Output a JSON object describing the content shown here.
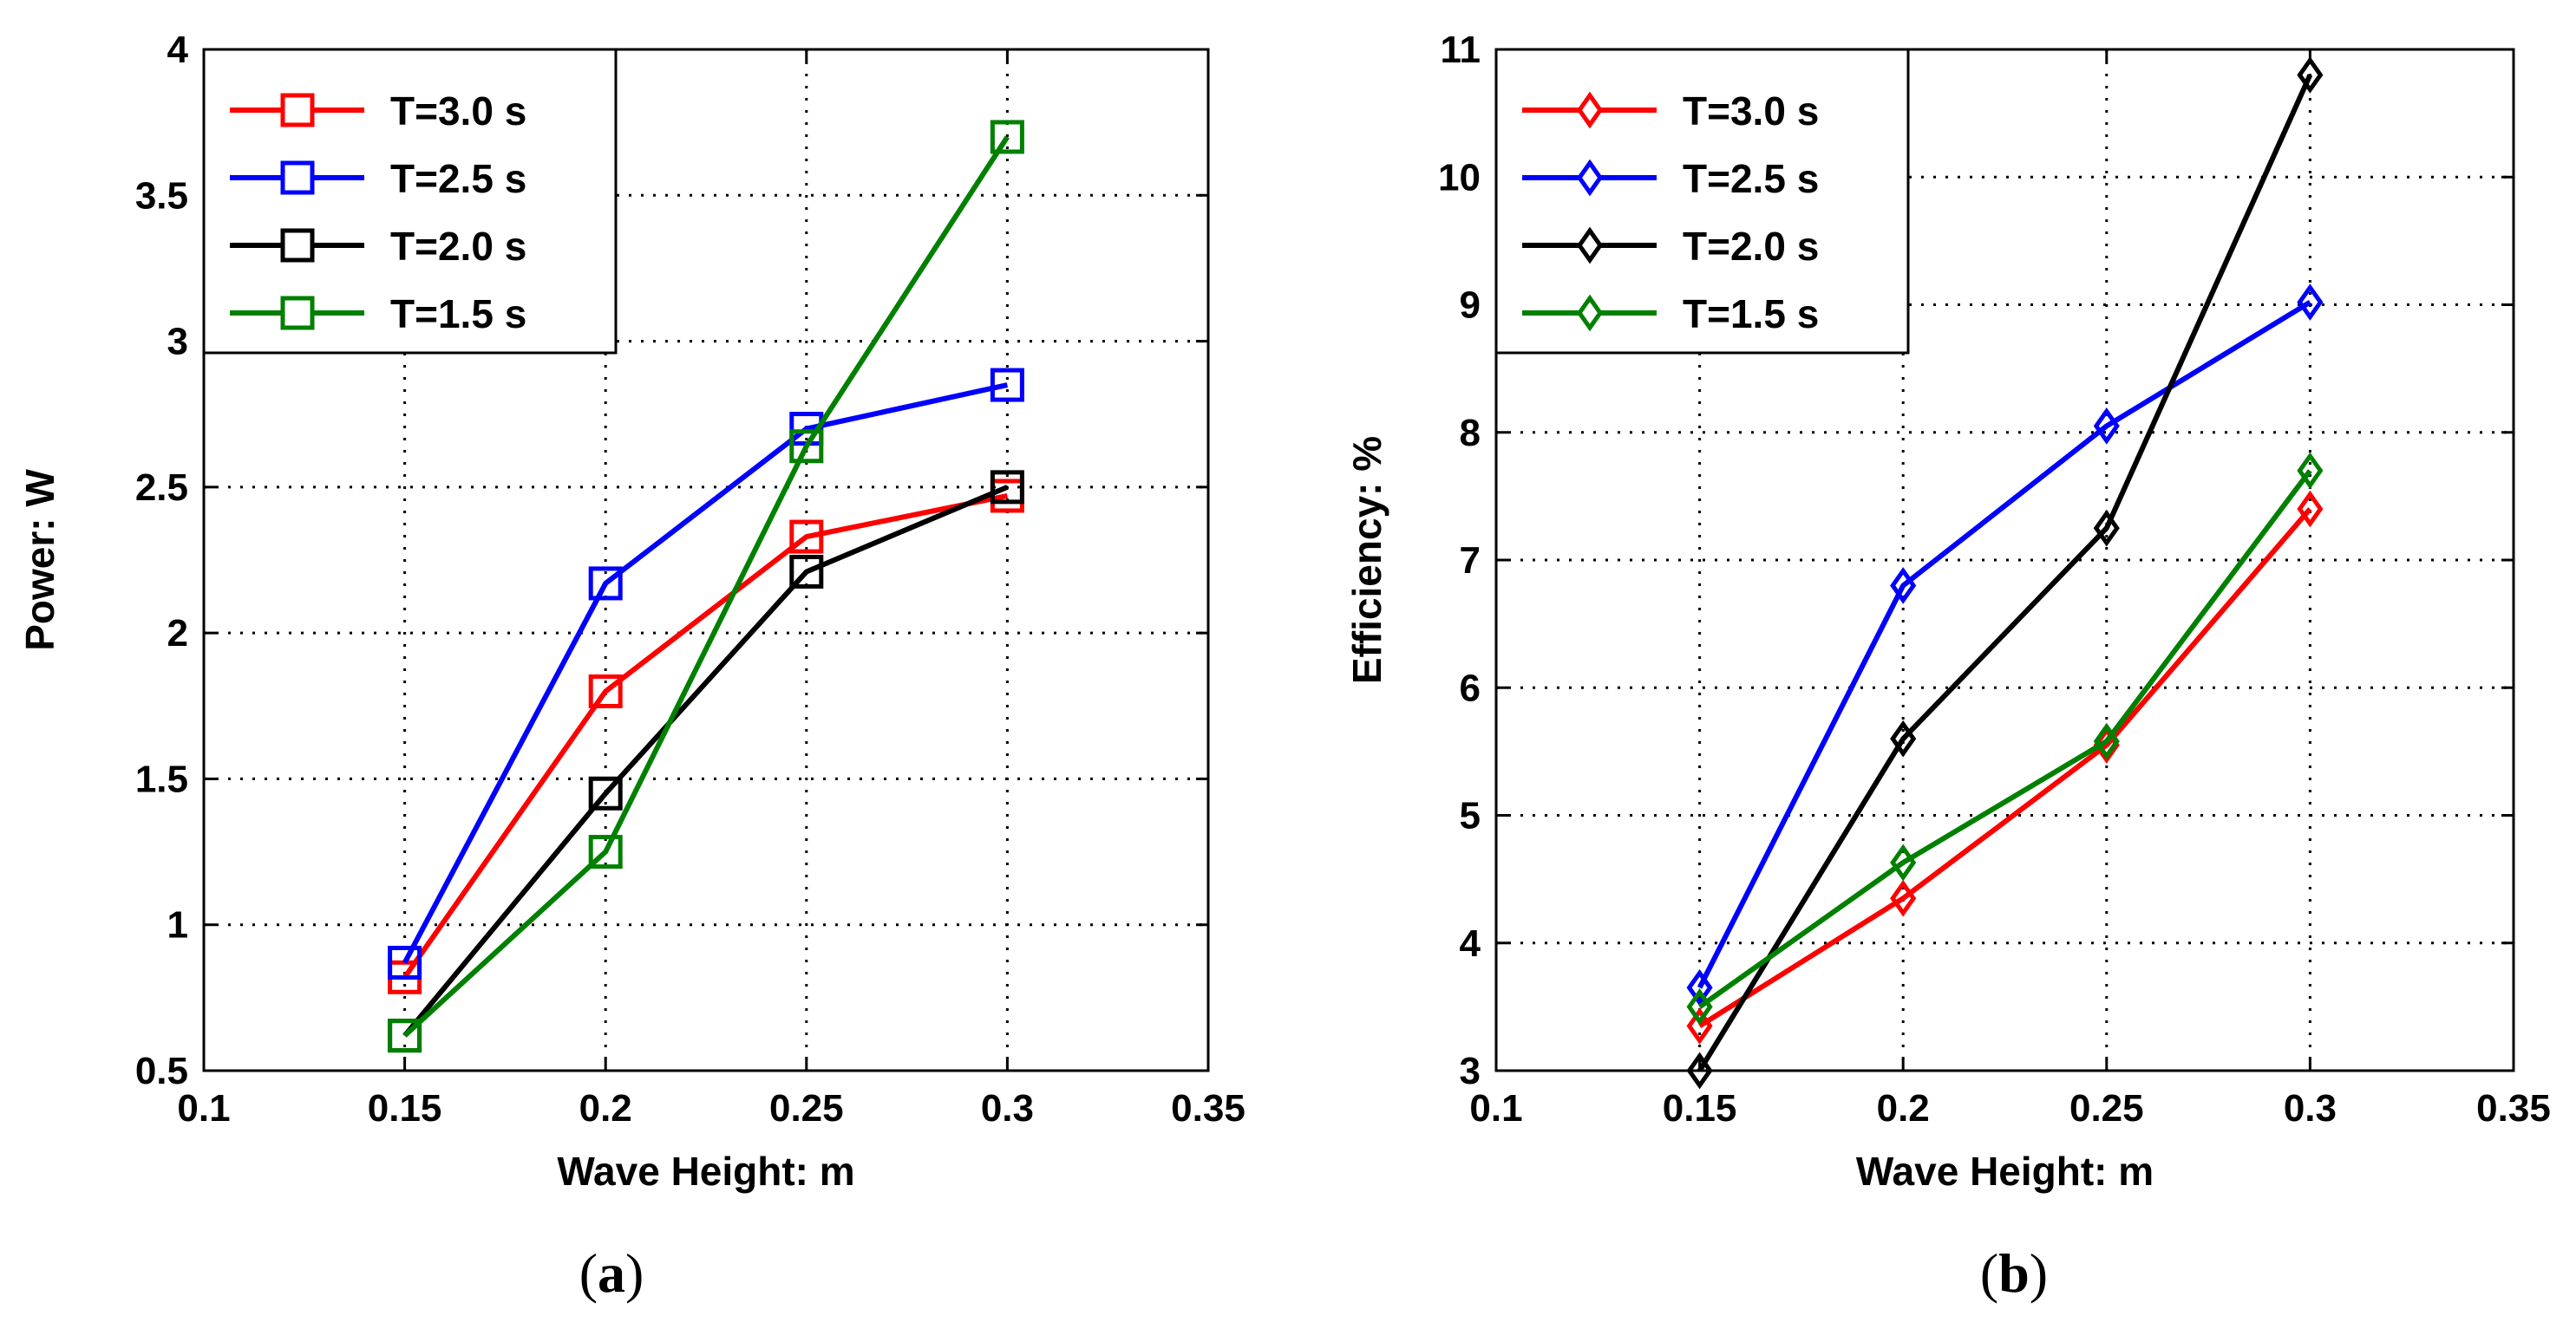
{
  "chart_data": [
    {
      "type": "line",
      "caption_open": "(",
      "caption_letter": "a",
      "caption_close": ")",
      "xlabel": "Wave Height: m",
      "ylabel": "Power: W",
      "xlim": [
        0.1,
        0.35
      ],
      "ylim": [
        0.5,
        4
      ],
      "xticks": [
        "0.1",
        "0.15",
        "0.2",
        "0.25",
        "0.3",
        "0.35"
      ],
      "yticks": [
        "0.5",
        "1",
        "1.5",
        "2",
        "2.5",
        "3",
        "3.5",
        "4"
      ],
      "grid": true,
      "legend_position": "top-left",
      "marker": "square",
      "x": [
        0.15,
        0.2,
        0.25,
        0.3
      ],
      "series": [
        {
          "name": "T=3.0 s",
          "color": "#ff0000",
          "values": [
            0.82,
            1.8,
            2.33,
            2.47
          ]
        },
        {
          "name": "T=2.5 s",
          "color": "#0000ff",
          "values": [
            0.87,
            2.17,
            2.7,
            2.85
          ]
        },
        {
          "name": "T=2.0 s",
          "color": "#000000",
          "values": [
            0.62,
            1.45,
            2.21,
            2.5
          ]
        },
        {
          "name": "T=1.5 s",
          "color": "#008000",
          "values": [
            0.62,
            1.25,
            2.64,
            3.7
          ]
        }
      ]
    },
    {
      "type": "line",
      "caption_open": "(",
      "caption_letter": "b",
      "caption_close": ")",
      "xlabel": "Wave Height: m",
      "ylabel": "Efficiency: %",
      "xlim": [
        0.1,
        0.35
      ],
      "ylim": [
        3,
        11
      ],
      "xticks": [
        "0.1",
        "0.15",
        "0.2",
        "0.25",
        "0.3",
        "0.35"
      ],
      "yticks": [
        "3",
        "4",
        "5",
        "6",
        "7",
        "8",
        "9",
        "10",
        "11"
      ],
      "grid": true,
      "legend_position": "top-left",
      "marker": "diamond",
      "x": [
        0.15,
        0.2,
        0.25,
        0.3
      ],
      "series": [
        {
          "name": "T=3.0 s",
          "color": "#ff0000",
          "values": [
            3.35,
            4.35,
            5.55,
            7.4
          ]
        },
        {
          "name": "T=2.5 s",
          "color": "#0000ff",
          "values": [
            3.65,
            6.8,
            8.05,
            9.02
          ]
        },
        {
          "name": "T=2.0 s",
          "color": "#000000",
          "values": [
            3.0,
            5.6,
            7.25,
            10.8
          ]
        },
        {
          "name": "T=1.5 s",
          "color": "#008000",
          "values": [
            3.5,
            4.63,
            5.58,
            7.7
          ]
        }
      ]
    }
  ]
}
